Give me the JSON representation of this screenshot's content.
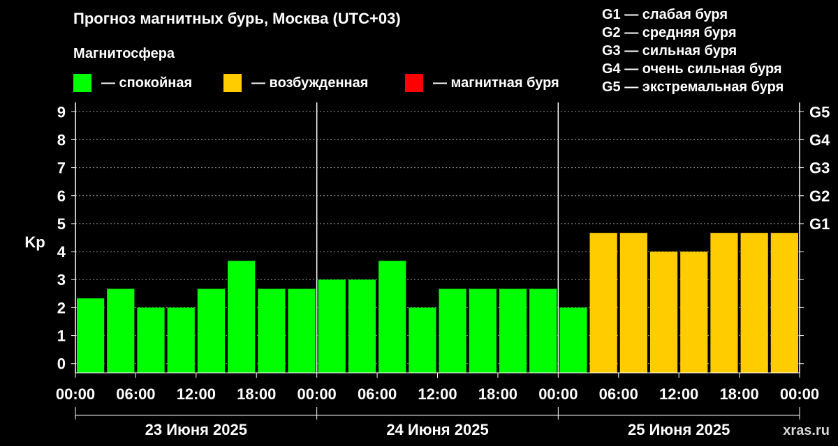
{
  "title": "Прогноз магнитных бурь, Москва (UTC+03)",
  "legend": {
    "title": "Магнитосфера",
    "items": [
      {
        "label": "— спокойная",
        "color": "#00ff00"
      },
      {
        "label": "— возбужденная",
        "color": "#ffcc00"
      },
      {
        "label": "— магнитная буря",
        "color": "#ff0000"
      }
    ]
  },
  "g_scale": [
    "G1 — слабая буря",
    "G2 — средняя буря",
    "G3 — сильная буря",
    "G4 — очень сильная буря",
    "G5 — экстремальная буря"
  ],
  "watermark": "xras.ru",
  "chart_data": {
    "type": "bar",
    "ylabel": "Kp",
    "ylim": [
      -0.33,
      9.33
    ],
    "y_ticks": [
      0,
      1,
      2,
      3,
      4,
      5,
      6,
      7,
      8,
      9
    ],
    "right_axis_labels": [
      {
        "value": 5,
        "label": "G1"
      },
      {
        "value": 6,
        "label": "G2"
      },
      {
        "value": 7,
        "label": "G3"
      },
      {
        "value": 8,
        "label": "G4"
      },
      {
        "value": 9,
        "label": "G5"
      }
    ],
    "x_tick_labels": [
      "00:00",
      "06:00",
      "12:00",
      "18:00",
      "00:00",
      "06:00",
      "12:00",
      "18:00",
      "00:00",
      "06:00",
      "12:00",
      "18:00",
      "00:00"
    ],
    "days": [
      "23 Июня 2025",
      "24 Июня 2025",
      "25 Июня 2025"
    ],
    "interval_hours": 3,
    "values": [
      2.33,
      2.67,
      2.0,
      2.0,
      2.67,
      3.67,
      2.67,
      2.67,
      3.0,
      3.0,
      3.67,
      2.0,
      2.67,
      2.67,
      2.67,
      2.67,
      2.0,
      4.67,
      4.67,
      4.0,
      4.0,
      4.67,
      4.67,
      4.67
    ],
    "colors": [
      "#00ff00",
      "#00ff00",
      "#00ff00",
      "#00ff00",
      "#00ff00",
      "#00ff00",
      "#00ff00",
      "#00ff00",
      "#00ff00",
      "#00ff00",
      "#00ff00",
      "#00ff00",
      "#00ff00",
      "#00ff00",
      "#00ff00",
      "#00ff00",
      "#00ff00",
      "#ffcc00",
      "#ffcc00",
      "#ffcc00",
      "#ffcc00",
      "#ffcc00",
      "#ffcc00",
      "#ffcc00"
    ],
    "grid": true
  }
}
